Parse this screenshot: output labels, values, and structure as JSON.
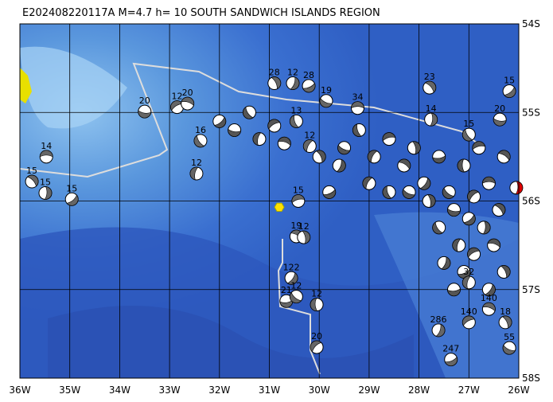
{
  "header": {
    "title": "E202408220117A M=4.7 h= 10 SOUTH SANDWICH ISLANDS REGION"
  },
  "map": {
    "lon_labels": [
      "36W",
      "35W",
      "34W",
      "33W",
      "32W",
      "31W",
      "30W",
      "29W",
      "28W",
      "27W",
      "26W"
    ],
    "lat_labels": [
      "54S",
      "55S",
      "56S",
      "57S",
      "58S"
    ],
    "events": [
      {
        "depth": 14,
        "lon": 35.47,
        "lat": 55.5
      },
      {
        "depth": 15,
        "lon": 35.76,
        "lat": 55.78
      },
      {
        "depth": 15,
        "lon": 35.49,
        "lat": 55.91
      },
      {
        "depth": 15,
        "lon": 34.96,
        "lat": 55.98
      },
      {
        "depth": 20,
        "lon": 33.5,
        "lat": 54.99
      },
      {
        "depth": 16,
        "lon": 32.38,
        "lat": 55.32
      },
      {
        "depth": 12,
        "lon": 32.46,
        "lat": 55.69
      },
      {
        "depth": 12,
        "lon": 32.85,
        "lat": 54.94
      },
      {
        "depth": 20,
        "lon": 32.64,
        "lat": 54.9
      },
      {
        "depth": 28,
        "lon": 30.9,
        "lat": 54.67
      },
      {
        "depth": 12,
        "lon": 30.53,
        "lat": 54.67
      },
      {
        "depth": 28,
        "lon": 30.21,
        "lat": 54.7
      },
      {
        "depth": 19,
        "lon": 29.86,
        "lat": 54.87
      },
      {
        "depth": 13,
        "lon": 30.46,
        "lat": 55.1
      },
      {
        "depth": 12,
        "lon": 30.19,
        "lat": 55.38
      },
      {
        "depth": 15,
        "lon": 30.42,
        "lat": 56.0
      },
      {
        "depth": 19,
        "lon": 30.46,
        "lat": 56.4
      },
      {
        "depth": 12,
        "lon": 30.31,
        "lat": 56.41
      },
      {
        "depth": 122,
        "lon": 30.56,
        "lat": 56.87
      },
      {
        "depth": 21,
        "lon": 30.66,
        "lat": 57.13
      },
      {
        "depth": 12,
        "lon": 30.46,
        "lat": 57.08
      },
      {
        "depth": 12,
        "lon": 30.05,
        "lat": 57.17
      },
      {
        "depth": 20,
        "lon": 30.05,
        "lat": 57.65
      },
      {
        "depth": 34,
        "lon": 29.23,
        "lat": 54.95
      },
      {
        "depth": 23,
        "lon": 27.79,
        "lat": 54.72
      },
      {
        "depth": 14,
        "lon": 27.76,
        "lat": 55.08
      },
      {
        "depth": 15,
        "lon": 26.19,
        "lat": 54.76
      },
      {
        "depth": 20,
        "lon": 26.38,
        "lat": 55.08
      },
      {
        "depth": 15,
        "lon": 27.0,
        "lat": 55.25
      },
      {
        "depth": 32,
        "lon": 27.0,
        "lat": 56.92
      },
      {
        "depth": 140,
        "lon": 27.0,
        "lat": 57.37
      },
      {
        "depth": 140,
        "lon": 26.6,
        "lat": 57.22
      },
      {
        "depth": 18,
        "lon": 26.27,
        "lat": 57.37
      },
      {
        "depth": 286,
        "lon": 27.61,
        "lat": 57.46
      },
      {
        "depth": 247,
        "lon": 27.36,
        "lat": 57.79
      },
      {
        "depth": 55,
        "lon": 26.19,
        "lat": 57.66
      }
    ],
    "unlabeled_events": [
      [
        32.0,
        55.1
      ],
      [
        31.7,
        55.2
      ],
      [
        31.4,
        55.0
      ],
      [
        31.2,
        55.3
      ],
      [
        30.9,
        55.15
      ],
      [
        30.7,
        55.35
      ],
      [
        30.0,
        55.5
      ],
      [
        29.6,
        55.6
      ],
      [
        29.8,
        55.9
      ],
      [
        29.5,
        55.4
      ],
      [
        29.2,
        55.2
      ],
      [
        28.9,
        55.5
      ],
      [
        28.6,
        55.3
      ],
      [
        28.3,
        55.6
      ],
      [
        28.1,
        55.4
      ],
      [
        27.9,
        55.8
      ],
      [
        27.6,
        55.5
      ],
      [
        27.4,
        55.9
      ],
      [
        27.1,
        55.6
      ],
      [
        26.9,
        55.95
      ],
      [
        26.6,
        55.8
      ],
      [
        26.4,
        56.1
      ],
      [
        26.7,
        56.3
      ],
      [
        27.0,
        56.2
      ],
      [
        27.3,
        56.1
      ],
      [
        27.6,
        56.3
      ],
      [
        27.2,
        56.5
      ],
      [
        26.9,
        56.6
      ],
      [
        26.5,
        56.5
      ],
      [
        26.3,
        56.8
      ],
      [
        27.5,
        56.7
      ],
      [
        27.1,
        56.8
      ],
      [
        28.2,
        55.9
      ],
      [
        28.6,
        55.9
      ],
      [
        29.0,
        55.8
      ],
      [
        26.8,
        55.4
      ],
      [
        26.3,
        55.5
      ],
      [
        27.8,
        56.0
      ],
      [
        26.6,
        57.0
      ],
      [
        27.3,
        57.0
      ]
    ],
    "red_event": [
      26.05,
      55.85
    ],
    "star_event": [
      30.8,
      56.07
    ]
  }
}
